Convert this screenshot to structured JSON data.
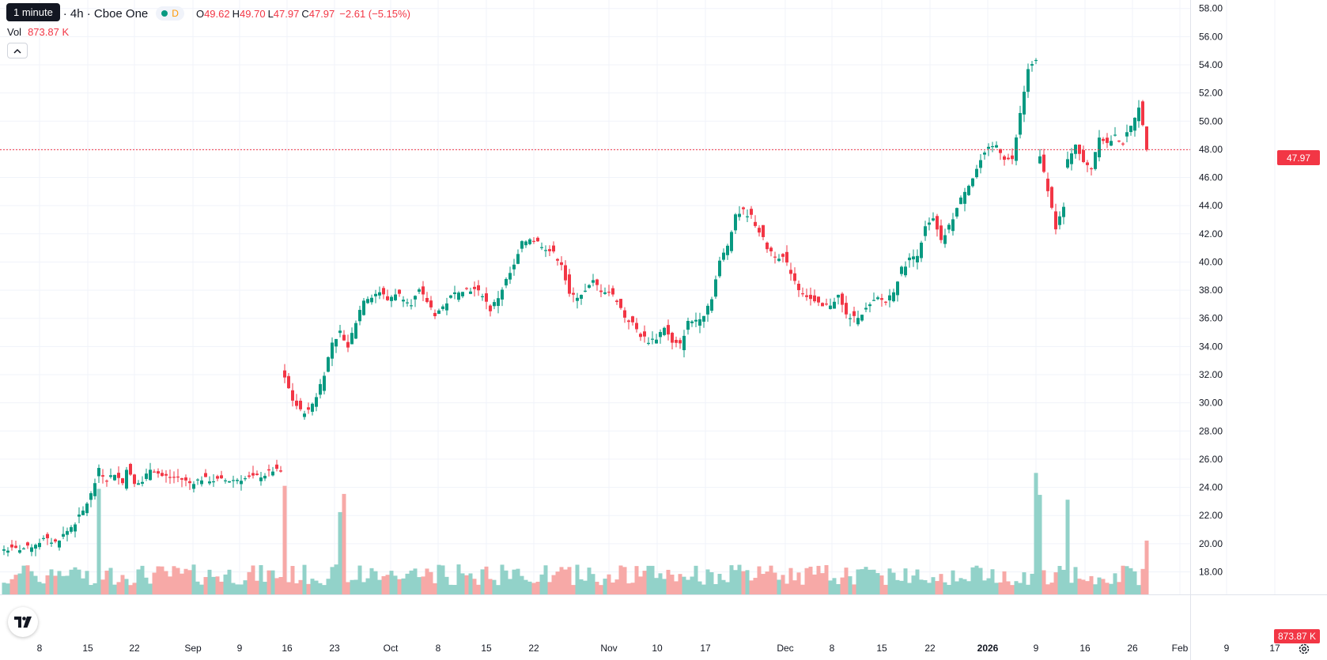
{
  "legend": {
    "symbol_title": "orporation · 4h · Cboe One",
    "interval_badge": "D",
    "open_label": "O",
    "open_value": "49.62",
    "high_label": "H",
    "high_value": "49.70",
    "low_label": "L",
    "low_value": "47.97",
    "close_label": "C",
    "close_value": "47.97",
    "change_value": "−2.61 (−5.15%)"
  },
  "tooltip": "1 minute",
  "volume_legend": {
    "label": "Vol",
    "value": "873.87 K"
  },
  "collapse_icon": "chevron-up-icon",
  "last_price_tag": "47.97",
  "volume_tag": "873.87 K",
  "colors": {
    "up": "#089981",
    "down": "#f23645",
    "up_volume": "#92d2c9",
    "down_volume": "#f7a9a7",
    "grid": "#f0f3fa"
  },
  "chart_data": {
    "type": "candlestick",
    "title": "",
    "grid": true,
    "last_price": 47.97,
    "last_volume": 873870,
    "price_axis": {
      "range": [
        16.4,
        58.6
      ],
      "ticks": [
        "58.00",
        "56.00",
        "54.00",
        "52.00",
        "50.00",
        "48.00",
        "46.00",
        "44.00",
        "42.00",
        "40.00",
        "38.00",
        "36.00",
        "34.00",
        "32.00",
        "30.00",
        "28.00",
        "26.00",
        "24.00",
        "22.00",
        "20.00",
        "18.00"
      ]
    },
    "time_axis": {
      "labels": [
        "8",
        "15",
        "22",
        "Sep",
        "9",
        "16",
        "23",
        "Oct",
        "8",
        "15",
        "22",
        "Nov",
        "10",
        "17",
        "Dec",
        "8",
        "15",
        "22",
        "2026",
        "9",
        "16",
        "26",
        "Feb",
        "9",
        "17"
      ],
      "bold": [
        "2026"
      ]
    },
    "price_anchors": [
      [
        0,
        19.6
      ],
      [
        3,
        19.6
      ],
      [
        6,
        19.7
      ],
      [
        10,
        20.3
      ],
      [
        13,
        20.1
      ],
      [
        16,
        20.9
      ],
      [
        18,
        21.5
      ],
      [
        20,
        22.3
      ],
      [
        22,
        23.5
      ],
      [
        24,
        25.2
      ],
      [
        26,
        24.6
      ],
      [
        28,
        25.0
      ],
      [
        30,
        24.3
      ],
      [
        31,
        25.4
      ],
      [
        33,
        24.2
      ],
      [
        35,
        24.4
      ],
      [
        37,
        25.4
      ],
      [
        40,
        24.8
      ],
      [
        44,
        24.7
      ],
      [
        47,
        24.3
      ],
      [
        50,
        24.6
      ],
      [
        53,
        24.5
      ],
      [
        57,
        24.5
      ],
      [
        60,
        24.6
      ],
      [
        63,
        24.7
      ],
      [
        66,
        24.9
      ],
      [
        68,
        25.2
      ],
      [
        70,
        25.1
      ],
      [
        71,
        31.8
      ],
      [
        73,
        30.2
      ],
      [
        75,
        29.4
      ],
      [
        77,
        29.4
      ],
      [
        79,
        30.5
      ],
      [
        81,
        32.1
      ],
      [
        83,
        34.3
      ],
      [
        85,
        35.0
      ],
      [
        87,
        34.0
      ],
      [
        89,
        35.8
      ],
      [
        91,
        37.4
      ],
      [
        93,
        37.6
      ],
      [
        95,
        37.9
      ],
      [
        97,
        37.3
      ],
      [
        99,
        37.8
      ],
      [
        101,
        37.5
      ],
      [
        103,
        37.1
      ],
      [
        105,
        37.9
      ],
      [
        107,
        37.2
      ],
      [
        109,
        36.3
      ],
      [
        111,
        36.8
      ],
      [
        113,
        37.5
      ],
      [
        115,
        38.0
      ],
      [
        117,
        38.1
      ],
      [
        119,
        38.0
      ],
      [
        121,
        37.7
      ],
      [
        123,
        36.6
      ],
      [
        125,
        37.5
      ],
      [
        127,
        38.7
      ],
      [
        129,
        39.7
      ],
      [
        131,
        41.3
      ],
      [
        133,
        41.7
      ],
      [
        135,
        41.4
      ],
      [
        137,
        41.0
      ],
      [
        139,
        40.6
      ],
      [
        141,
        39.9
      ],
      [
        143,
        37.6
      ],
      [
        145,
        37.6
      ],
      [
        147,
        37.9
      ],
      [
        149,
        38.6
      ],
      [
        151,
        38.0
      ],
      [
        153,
        37.9
      ],
      [
        155,
        37.3
      ],
      [
        157,
        36.1
      ],
      [
        159,
        35.6
      ],
      [
        161,
        34.8
      ],
      [
        163,
        34.4
      ],
      [
        165,
        34.6
      ],
      [
        167,
        35.4
      ],
      [
        169,
        34.2
      ],
      [
        171,
        34.1
      ],
      [
        173,
        35.7
      ],
      [
        175,
        35.9
      ],
      [
        177,
        36.3
      ],
      [
        179,
        37.5
      ],
      [
        181,
        40.0
      ],
      [
        183,
        41.2
      ],
      [
        185,
        43.4
      ],
      [
        187,
        43.6
      ],
      [
        189,
        43.2
      ],
      [
        191,
        42.2
      ],
      [
        193,
        41.0
      ],
      [
        195,
        40.5
      ],
      [
        197,
        40.3
      ],
      [
        199,
        39.3
      ],
      [
        201,
        38.1
      ],
      [
        203,
        37.6
      ],
      [
        205,
        37.1
      ],
      [
        207,
        36.8
      ],
      [
        209,
        37.0
      ],
      [
        211,
        37.6
      ],
      [
        213,
        36.2
      ],
      [
        215,
        36.0
      ],
      [
        217,
        36.4
      ],
      [
        219,
        36.9
      ],
      [
        221,
        37.4
      ],
      [
        223,
        37.2
      ],
      [
        225,
        38.0
      ],
      [
        227,
        39.5
      ],
      [
        229,
        40.2
      ],
      [
        231,
        40.6
      ],
      [
        233,
        42.4
      ],
      [
        235,
        43.0
      ],
      [
        237,
        41.4
      ],
      [
        239,
        42.5
      ],
      [
        241,
        43.8
      ],
      [
        243,
        45.1
      ],
      [
        245,
        46.0
      ],
      [
        247,
        47.2
      ],
      [
        249,
        48.0
      ],
      [
        251,
        48.3
      ],
      [
        253,
        47.4
      ],
      [
        255,
        47.2
      ],
      [
        257,
        50.5
      ],
      [
        259,
        53.7
      ],
      [
        261,
        54.2
      ],
      [
        262,
        47.5
      ],
      [
        264,
        45.2
      ],
      [
        266,
        42.4
      ],
      [
        268,
        43.9
      ],
      [
        269,
        47.3
      ],
      [
        271,
        48.4
      ],
      [
        273,
        47.0
      ],
      [
        275,
        46.7
      ],
      [
        277,
        49.0
      ],
      [
        279,
        48.4
      ],
      [
        281,
        48.9
      ],
      [
        283,
        48.5
      ],
      [
        285,
        49.6
      ],
      [
        287,
        51.1
      ],
      [
        288,
        49.6
      ],
      [
        289,
        47.97
      ]
    ],
    "volume_axis": {
      "max": 2400000
    }
  }
}
